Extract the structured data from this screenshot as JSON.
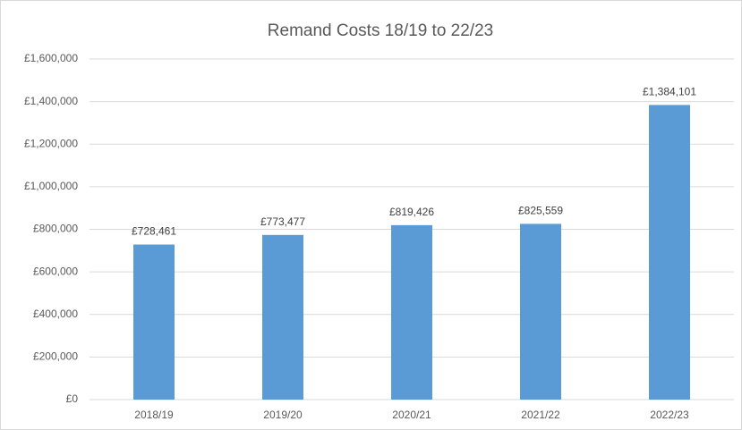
{
  "chart_data": {
    "type": "bar",
    "title": "Remand Costs 18/19 to 22/23",
    "categories": [
      "2018/19",
      "2019/20",
      "2020/21",
      "2021/22",
      "2022/23"
    ],
    "values": [
      728461,
      773477,
      819426,
      825559,
      1384101
    ],
    "value_labels": [
      "£728,461",
      "£773,477",
      "£819,426",
      "£825,559",
      "£1,384,101"
    ],
    "color": "#5b9bd5",
    "ylim": [
      0,
      1600000
    ],
    "yticks": [
      {
        "value": 0,
        "label": "£0"
      },
      {
        "value": 200000,
        "label": "£200,000"
      },
      {
        "value": 400000,
        "label": "£400,000"
      },
      {
        "value": 600000,
        "label": "£600,000"
      },
      {
        "value": 800000,
        "label": "£800,000"
      },
      {
        "value": 1000000,
        "label": "£1,000,000"
      },
      {
        "value": 1200000,
        "label": "£1,200,000"
      },
      {
        "value": 1400000,
        "label": "£1,400,000"
      },
      {
        "value": 1600000,
        "label": "£1,600,000"
      }
    ],
    "grid": true
  }
}
